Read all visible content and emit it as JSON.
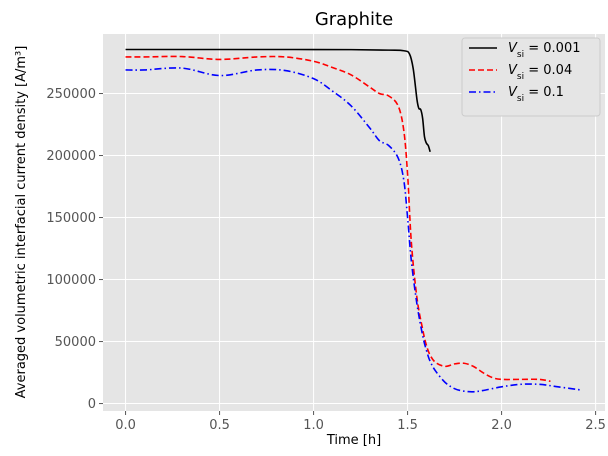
{
  "chart_data": {
    "type": "line",
    "title": "Graphite",
    "xlabel": "Time [h]",
    "ylabel": "Averaged volumetric interfacial current density [A/m³]",
    "xlim": [
      -0.12,
      2.55
    ],
    "ylim": [
      -6000,
      298000
    ],
    "xticks": [
      0.0,
      0.5,
      1.0,
      1.5,
      2.0,
      2.5
    ],
    "xtick_labels": [
      "0.0",
      "0.5",
      "1.0",
      "1.5",
      "2.0",
      "2.5"
    ],
    "yticks": [
      0,
      50000,
      100000,
      150000,
      200000,
      250000
    ],
    "ytick_labels": [
      "0",
      "50000",
      "100000",
      "150000",
      "200000",
      "250000"
    ],
    "grid": true,
    "style": "ggplot",
    "legend_position": "top-right",
    "series": [
      {
        "name": "V_si = 0.001",
        "legend_main": "V",
        "legend_sub": "si",
        "legend_value": " = 0.001",
        "color": "#000000",
        "dash": "solid",
        "x": [
          0.0,
          0.3,
          0.6,
          0.9,
          1.2,
          1.4,
          1.48,
          1.51,
          1.53,
          1.55,
          1.56,
          1.57,
          1.58,
          1.59,
          1.6,
          1.61,
          1.62
        ],
        "y": [
          285500,
          285500,
          285500,
          285500,
          285400,
          285000,
          284500,
          282000,
          270000,
          245000,
          238000,
          237000,
          230000,
          215000,
          210000,
          208000,
          203000
        ]
      },
      {
        "name": "V_si = 0.04",
        "legend_main": "V",
        "legend_sub": "si",
        "legend_value": " = 0.04",
        "color": "#ff0000",
        "dash": "6,3",
        "x": [
          0.0,
          0.1,
          0.3,
          0.5,
          0.7,
          0.85,
          1.0,
          1.1,
          1.2,
          1.3,
          1.35,
          1.4,
          1.45,
          1.48,
          1.5,
          1.52,
          1.55,
          1.58,
          1.6,
          1.62,
          1.65,
          1.7,
          1.75,
          1.8,
          1.85,
          1.9,
          1.95,
          2.0,
          2.1,
          2.2,
          2.26
        ],
        "y": [
          279500,
          279500,
          279800,
          277500,
          279500,
          279500,
          276000,
          271000,
          265000,
          255000,
          250000,
          248000,
          240000,
          220000,
          185000,
          130000,
          85000,
          60000,
          47000,
          39000,
          33000,
          30000,
          32000,
          32500,
          30000,
          25000,
          21000,
          19500,
          19500,
          19500,
          18000
        ]
      },
      {
        "name": "V_si = 0.1",
        "legend_main": "V",
        "legend_sub": "si",
        "legend_value": " = 0.1",
        "color": "#0000ff",
        "dash": "7,3,1.5,3",
        "x": [
          0.0,
          0.1,
          0.3,
          0.5,
          0.7,
          0.85,
          1.0,
          1.1,
          1.2,
          1.3,
          1.35,
          1.4,
          1.45,
          1.48,
          1.5,
          1.52,
          1.55,
          1.58,
          1.6,
          1.62,
          1.65,
          1.7,
          1.75,
          1.8,
          1.85,
          1.9,
          2.0,
          2.1,
          2.2,
          2.3,
          2.42
        ],
        "y": [
          269000,
          269000,
          270500,
          264500,
          269000,
          268500,
          262000,
          252000,
          240000,
          222000,
          212000,
          208000,
          198000,
          180000,
          150000,
          115000,
          80000,
          55000,
          43000,
          34000,
          26000,
          17000,
          12000,
          10000,
          9500,
          10500,
          13500,
          15500,
          15500,
          13500,
          11000
        ]
      }
    ]
  }
}
